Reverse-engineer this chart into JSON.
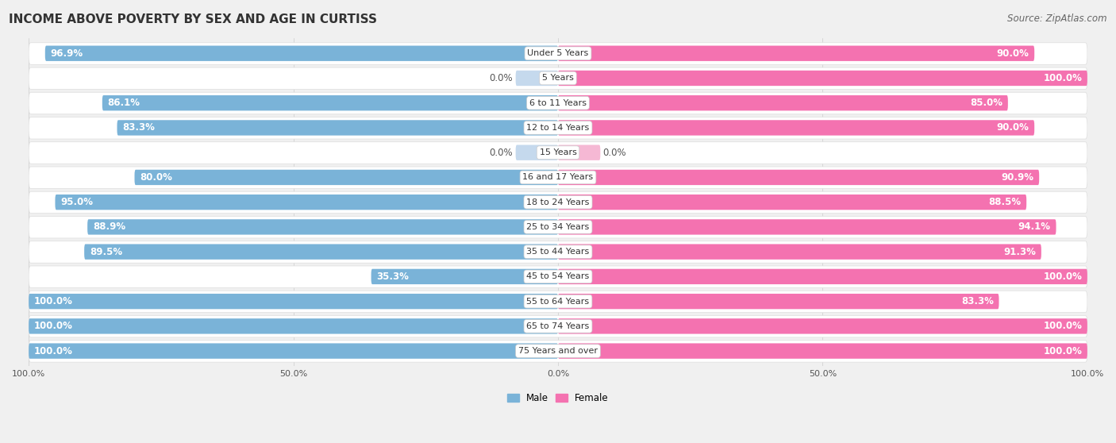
{
  "title": "INCOME ABOVE POVERTY BY SEX AND AGE IN CURTISS",
  "source": "Source: ZipAtlas.com",
  "categories": [
    "Under 5 Years",
    "5 Years",
    "6 to 11 Years",
    "12 to 14 Years",
    "15 Years",
    "16 and 17 Years",
    "18 to 24 Years",
    "25 to 34 Years",
    "35 to 44 Years",
    "45 to 54 Years",
    "55 to 64 Years",
    "65 to 74 Years",
    "75 Years and over"
  ],
  "male_values": [
    96.9,
    0.0,
    86.1,
    83.3,
    0.0,
    80.0,
    95.0,
    88.9,
    89.5,
    35.3,
    100.0,
    100.0,
    100.0
  ],
  "female_values": [
    90.0,
    100.0,
    85.0,
    90.0,
    0.0,
    90.9,
    88.5,
    94.1,
    91.3,
    100.0,
    83.3,
    100.0,
    100.0
  ],
  "male_color": "#7ab3d8",
  "female_color": "#f472b0",
  "male_light_color": "#c5d9ed",
  "female_light_color": "#f5b8d4",
  "background_color": "#f0f0f0",
  "row_color_odd": "#e8e8e8",
  "row_color_even": "#f8f8f8",
  "title_fontsize": 11,
  "label_fontsize": 8.5,
  "tick_fontsize": 8,
  "source_fontsize": 8.5
}
